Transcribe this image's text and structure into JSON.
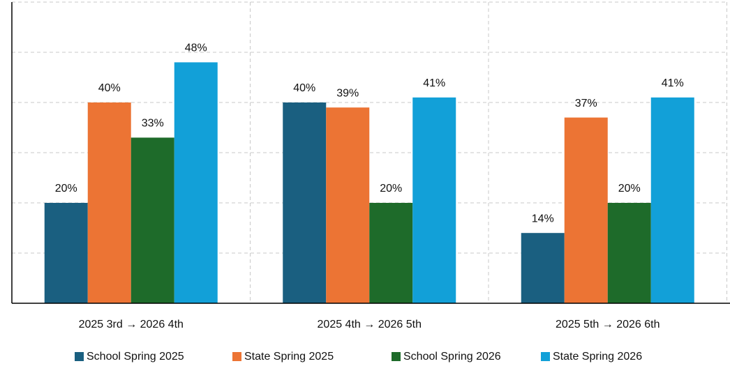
{
  "chart_data": {
    "type": "bar",
    "categories": [
      "2025 3rd → 2026 4th",
      "2025 4th → 2026 5th",
      "2025 5th → 2026 6th"
    ],
    "series": [
      {
        "name": "School Spring 2025",
        "color": "#1a5f80",
        "values": [
          20,
          40,
          14
        ],
        "value_labels": [
          "20%",
          "40%",
          "14%"
        ]
      },
      {
        "name": "State Spring 2025",
        "color": "#ec7434",
        "values": [
          40,
          39,
          37
        ],
        "value_labels": [
          "40%",
          "39%",
          "37%"
        ]
      },
      {
        "name": "School Spring 2026",
        "color": "#1e6b2a",
        "values": [
          33,
          20,
          20
        ],
        "value_labels": [
          "33%",
          "20%",
          "20%"
        ]
      },
      {
        "name": "State Spring 2026",
        "color": "#12a0d8",
        "values": [
          48,
          41,
          41
        ],
        "value_labels": [
          "48%",
          "41%",
          "41%"
        ]
      }
    ],
    "ylim": [
      0,
      60
    ],
    "yticks": [
      0,
      10,
      20,
      30,
      40,
      50,
      60
    ],
    "grid": true,
    "legend": "bottom"
  }
}
